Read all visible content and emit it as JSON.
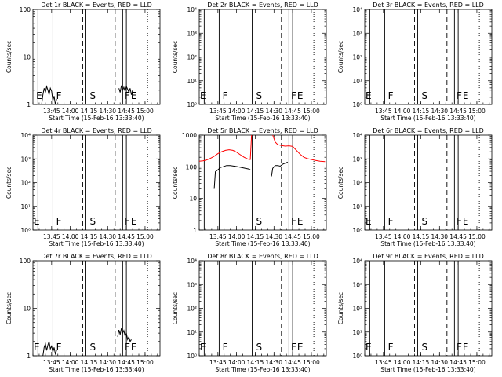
{
  "time_start_minutes": 810,
  "x_tick_labels": [
    "13:45",
    "14:00",
    "14:15",
    "14:30",
    "14:45",
    "15:00"
  ],
  "x_tick_values": [
    825,
    840,
    855,
    870,
    885,
    900
  ],
  "xlabel": "Start Time (15-Feb-16 13:33:40)",
  "ylabel": "Counts/sec",
  "colors": {
    "events": "#000000",
    "lld": "#ff0000"
  },
  "chart_data": [
    {
      "type": "line",
      "title": "Det 1r BLACK = Events, RED = LLD",
      "yscale": "log",
      "ylim": [
        1,
        100
      ],
      "ytick_labels": [
        "1",
        "10",
        "100"
      ],
      "ytick_values": [
        1,
        10,
        100
      ],
      "vlines": [
        {
          "t": 814,
          "style": "solid"
        },
        {
          "t": 826,
          "style": "solid"
        },
        {
          "t": 850,
          "style": "dashed"
        },
        {
          "t": 852.5,
          "style": "solid"
        },
        {
          "t": 876,
          "style": "dashed"
        },
        {
          "t": 882,
          "style": "solid"
        },
        {
          "t": 885,
          "style": "solid"
        },
        {
          "t": 902,
          "style": "dotted"
        }
      ],
      "segment_labels": [
        {
          "t": 812,
          "text": "E"
        },
        {
          "t": 828,
          "text": "F"
        },
        {
          "t": 855,
          "text": "S"
        },
        {
          "t": 883,
          "text": "F"
        },
        {
          "t": 888,
          "text": "E"
        }
      ],
      "series": [
        {
          "kind": "events",
          "segments": [
            [
              [
                817,
                1.0
              ],
              [
                818,
                1.6
              ],
              [
                819,
                2.2
              ],
              [
                820,
                1.8
              ],
              [
                821,
                2.4
              ],
              [
                822,
                2.0
              ],
              [
                823,
                1.6
              ],
              [
                824,
                2.2
              ],
              [
                825,
                1.9
              ],
              [
                826,
                1.2
              ],
              [
                827,
                1.5
              ],
              [
                828,
                1.0
              ],
              [
                829,
                1.3
              ]
            ],
            [
              [
                879,
                2.2
              ],
              [
                880,
                1.8
              ],
              [
                881,
                2.5
              ],
              [
                882,
                2.0
              ],
              [
                883,
                2.3
              ],
              [
                884,
                1.9
              ],
              [
                885,
                2.4
              ],
              [
                886,
                2.1
              ],
              [
                887,
                1.8
              ],
              [
                888,
                2.2
              ],
              [
                889,
                1.6
              ],
              [
                890,
                2.0
              ]
            ]
          ]
        }
      ]
    },
    {
      "type": "line",
      "title": "Det 2r BLACK = Events, RED = LLD",
      "yscale": "log",
      "ylim": [
        1,
        10000
      ],
      "ytick_labels": [
        "10⁰",
        "10¹",
        "10²",
        "10³",
        "10⁴"
      ],
      "ytick_values": [
        1,
        10,
        100,
        1000,
        10000
      ],
      "vlines": [
        {
          "t": 814,
          "style": "solid"
        },
        {
          "t": 826,
          "style": "solid"
        },
        {
          "t": 850,
          "style": "dashed"
        },
        {
          "t": 852.5,
          "style": "solid"
        },
        {
          "t": 876,
          "style": "dashed"
        },
        {
          "t": 882,
          "style": "solid"
        },
        {
          "t": 885,
          "style": "solid"
        },
        {
          "t": 902,
          "style": "dotted"
        }
      ],
      "segment_labels": [
        {
          "t": 810,
          "text": "E"
        },
        {
          "t": 828,
          "text": "F"
        },
        {
          "t": 855,
          "text": "S"
        },
        {
          "t": 883,
          "text": "F"
        },
        {
          "t": 888,
          "text": "E"
        }
      ],
      "series": []
    },
    {
      "type": "line",
      "title": "Det 3r BLACK = Events, RED = LLD",
      "yscale": "log",
      "ylim": [
        1,
        10000
      ],
      "ytick_labels": [
        "10⁰",
        "10¹",
        "10²",
        "10³",
        "10⁴"
      ],
      "ytick_values": [
        1,
        10,
        100,
        1000,
        10000
      ],
      "vlines": [
        {
          "t": 814,
          "style": "solid"
        },
        {
          "t": 826,
          "style": "solid"
        },
        {
          "t": 850,
          "style": "dashed"
        },
        {
          "t": 852.5,
          "style": "solid"
        },
        {
          "t": 876,
          "style": "dashed"
        },
        {
          "t": 882,
          "style": "solid"
        },
        {
          "t": 885,
          "style": "solid"
        },
        {
          "t": 902,
          "style": "dotted"
        }
      ],
      "segment_labels": [
        {
          "t": 810,
          "text": "E"
        },
        {
          "t": 828,
          "text": "F"
        },
        {
          "t": 855,
          "text": "S"
        },
        {
          "t": 883,
          "text": "F"
        },
        {
          "t": 888,
          "text": "E"
        }
      ],
      "series": []
    },
    {
      "type": "line",
      "title": "Det 4r BLACK = Events, RED = LLD",
      "yscale": "log",
      "ylim": [
        1,
        10000
      ],
      "ytick_labels": [
        "10⁰",
        "10¹",
        "10²",
        "10³",
        "10⁴"
      ],
      "ytick_values": [
        1,
        10,
        100,
        1000,
        10000
      ],
      "vlines": [
        {
          "t": 814,
          "style": "solid"
        },
        {
          "t": 826,
          "style": "solid"
        },
        {
          "t": 850,
          "style": "dashed"
        },
        {
          "t": 852.5,
          "style": "solid"
        },
        {
          "t": 876,
          "style": "dashed"
        },
        {
          "t": 882,
          "style": "solid"
        },
        {
          "t": 885,
          "style": "solid"
        },
        {
          "t": 902,
          "style": "dotted"
        }
      ],
      "segment_labels": [
        {
          "t": 810,
          "text": "E"
        },
        {
          "t": 828,
          "text": "F"
        },
        {
          "t": 855,
          "text": "S"
        },
        {
          "t": 883,
          "text": "F"
        },
        {
          "t": 888,
          "text": "E"
        }
      ],
      "series": []
    },
    {
      "type": "line",
      "title": "Det 5r BLACK = Events, RED = LLD",
      "yscale": "log",
      "ylim": [
        1,
        1000
      ],
      "ytick_labels": [
        "1",
        "10",
        "100",
        "1000"
      ],
      "ytick_values": [
        1,
        10,
        100,
        1000
      ],
      "vlines": [
        {
          "t": 814,
          "style": "solid"
        },
        {
          "t": 826,
          "style": "solid"
        },
        {
          "t": 850,
          "style": "dashed"
        },
        {
          "t": 852.5,
          "style": "solid"
        },
        {
          "t": 876,
          "style": "dashed"
        },
        {
          "t": 882,
          "style": "solid"
        },
        {
          "t": 885,
          "style": "solid"
        },
        {
          "t": 902,
          "style": "dotted"
        }
      ],
      "segment_labels": [
        {
          "t": 855,
          "text": "S"
        },
        {
          "t": 883,
          "text": "F"
        },
        {
          "t": 888,
          "text": "E"
        }
      ],
      "series": [
        {
          "kind": "lld",
          "segments": [
            [
              [
                810,
                150
              ],
              [
                813,
                155
              ],
              [
                816,
                165
              ],
              [
                819,
                185
              ],
              [
                822,
                215
              ],
              [
                825,
                260
              ],
              [
                828,
                300
              ],
              [
                831,
                330
              ],
              [
                834,
                345
              ],
              [
                837,
                330
              ],
              [
                840,
                290
              ],
              [
                843,
                240
              ],
              [
                846,
                200
              ],
              [
                849,
                175
              ],
              [
                851,
                170
              ],
              [
                852,
                1000
              ]
            ],
            [
              [
                869,
                1000
              ],
              [
                871,
                600
              ],
              [
                873,
                500
              ],
              [
                876,
                470
              ],
              [
                879,
                450
              ],
              [
                882,
                460
              ],
              [
                885,
                440
              ],
              [
                888,
                330
              ],
              [
                891,
                250
              ],
              [
                894,
                200
              ],
              [
                897,
                180
              ],
              [
                900,
                170
              ],
              [
                903,
                160
              ],
              [
                907,
                150
              ],
              [
                911,
                145
              ]
            ]
          ]
        },
        {
          "kind": "events",
          "segments": [
            [
              [
                822,
                20
              ],
              [
                823,
                70
              ],
              [
                825,
                80
              ],
              [
                827,
                95
              ],
              [
                829,
                100
              ],
              [
                832,
                110
              ],
              [
                835,
                110
              ],
              [
                838,
                105
              ],
              [
                841,
                100
              ],
              [
                844,
                95
              ],
              [
                847,
                90
              ],
              [
                850,
                85
              ],
              [
                851,
                80
              ]
            ],
            [
              [
                868,
                50
              ],
              [
                869,
                90
              ],
              [
                871,
                110
              ],
              [
                873,
                110
              ],
              [
                875,
                105
              ],
              [
                877,
                120
              ],
              [
                879,
                130
              ],
              [
                881,
                140
              ]
            ]
          ]
        }
      ]
    },
    {
      "type": "line",
      "title": "Det 6r BLACK = Events, RED = LLD",
      "yscale": "log",
      "ylim": [
        1,
        10000
      ],
      "ytick_labels": [
        "10⁰",
        "10¹",
        "10²",
        "10³",
        "10⁴"
      ],
      "ytick_values": [
        1,
        10,
        100,
        1000,
        10000
      ],
      "vlines": [
        {
          "t": 814,
          "style": "solid"
        },
        {
          "t": 826,
          "style": "solid"
        },
        {
          "t": 850,
          "style": "dashed"
        },
        {
          "t": 852.5,
          "style": "solid"
        },
        {
          "t": 876,
          "style": "dashed"
        },
        {
          "t": 882,
          "style": "solid"
        },
        {
          "t": 885,
          "style": "solid"
        },
        {
          "t": 902,
          "style": "dotted"
        }
      ],
      "segment_labels": [
        {
          "t": 810,
          "text": "E"
        },
        {
          "t": 828,
          "text": "F"
        },
        {
          "t": 855,
          "text": "S"
        },
        {
          "t": 883,
          "text": "F"
        },
        {
          "t": 888,
          "text": "E"
        }
      ],
      "series": []
    },
    {
      "type": "line",
      "title": "Det 7r BLACK = Events, RED = LLD",
      "yscale": "log",
      "ylim": [
        1,
        100
      ],
      "ytick_labels": [
        "1",
        "10",
        "100"
      ],
      "ytick_values": [
        1,
        10,
        100
      ],
      "vlines": [
        {
          "t": 814,
          "style": "solid"
        },
        {
          "t": 826,
          "style": "solid"
        },
        {
          "t": 850,
          "style": "dashed"
        },
        {
          "t": 852.5,
          "style": "solid"
        },
        {
          "t": 876,
          "style": "dashed"
        },
        {
          "t": 882,
          "style": "solid"
        },
        {
          "t": 885,
          "style": "solid"
        },
        {
          "t": 902,
          "style": "dotted"
        }
      ],
      "segment_labels": [
        {
          "t": 810,
          "text": "E"
        },
        {
          "t": 828,
          "text": "F"
        },
        {
          "t": 855,
          "text": "S"
        },
        {
          "t": 883,
          "text": "F"
        },
        {
          "t": 888,
          "text": "E"
        }
      ],
      "series": [
        {
          "kind": "events",
          "segments": [
            [
              [
                818,
                1.0
              ],
              [
                819,
                1.5
              ],
              [
                820,
                1.8
              ],
              [
                821,
                1.3
              ],
              [
                822,
                1.7
              ],
              [
                823,
                2.0
              ],
              [
                824,
                1.4
              ],
              [
                825,
                1.6
              ],
              [
                826,
                1.2
              ],
              [
                827,
                1.5
              ],
              [
                828,
                1.1
              ],
              [
                829,
                1.3
              ]
            ],
            [
              [
                878,
                2.5
              ],
              [
                879,
                3.5
              ],
              [
                880,
                2.8
              ],
              [
                881,
                3.8
              ],
              [
                882,
                3.0
              ],
              [
                883,
                3.4
              ],
              [
                884,
                2.6
              ],
              [
                885,
                3.0
              ],
              [
                886,
                2.2
              ],
              [
                887,
                2.5
              ],
              [
                888,
                2.0
              ],
              [
                889,
                2.2
              ]
            ]
          ]
        }
      ]
    },
    {
      "type": "line",
      "title": "Det 8r BLACK = Events, RED = LLD",
      "yscale": "log",
      "ylim": [
        1,
        10000
      ],
      "ytick_labels": [
        "10⁰",
        "10¹",
        "10²",
        "10³",
        "10⁴"
      ],
      "ytick_values": [
        1,
        10,
        100,
        1000,
        10000
      ],
      "vlines": [
        {
          "t": 814,
          "style": "solid"
        },
        {
          "t": 826,
          "style": "solid"
        },
        {
          "t": 850,
          "style": "dashed"
        },
        {
          "t": 852.5,
          "style": "solid"
        },
        {
          "t": 876,
          "style": "dashed"
        },
        {
          "t": 882,
          "style": "solid"
        },
        {
          "t": 885,
          "style": "solid"
        },
        {
          "t": 902,
          "style": "dotted"
        }
      ],
      "segment_labels": [
        {
          "t": 810,
          "text": "E"
        },
        {
          "t": 828,
          "text": "F"
        },
        {
          "t": 855,
          "text": "S"
        },
        {
          "t": 883,
          "text": "F"
        },
        {
          "t": 888,
          "text": "E"
        }
      ],
      "series": []
    },
    {
      "type": "line",
      "title": "Det 9r BLACK = Events, RED = LLD",
      "yscale": "log",
      "ylim": [
        1,
        10000
      ],
      "ytick_labels": [
        "10⁰",
        "10¹",
        "10²",
        "10³",
        "10⁴"
      ],
      "ytick_values": [
        1,
        10,
        100,
        1000,
        10000
      ],
      "vlines": [
        {
          "t": 814,
          "style": "solid"
        },
        {
          "t": 826,
          "style": "solid"
        },
        {
          "t": 850,
          "style": "dashed"
        },
        {
          "t": 852.5,
          "style": "solid"
        },
        {
          "t": 876,
          "style": "dashed"
        },
        {
          "t": 882,
          "style": "solid"
        },
        {
          "t": 885,
          "style": "solid"
        },
        {
          "t": 902,
          "style": "dotted"
        }
      ],
      "segment_labels": [
        {
          "t": 810,
          "text": "E"
        },
        {
          "t": 828,
          "text": "F"
        },
        {
          "t": 855,
          "text": "S"
        },
        {
          "t": 883,
          "text": "F"
        },
        {
          "t": 888,
          "text": "E"
        }
      ],
      "series": []
    }
  ]
}
